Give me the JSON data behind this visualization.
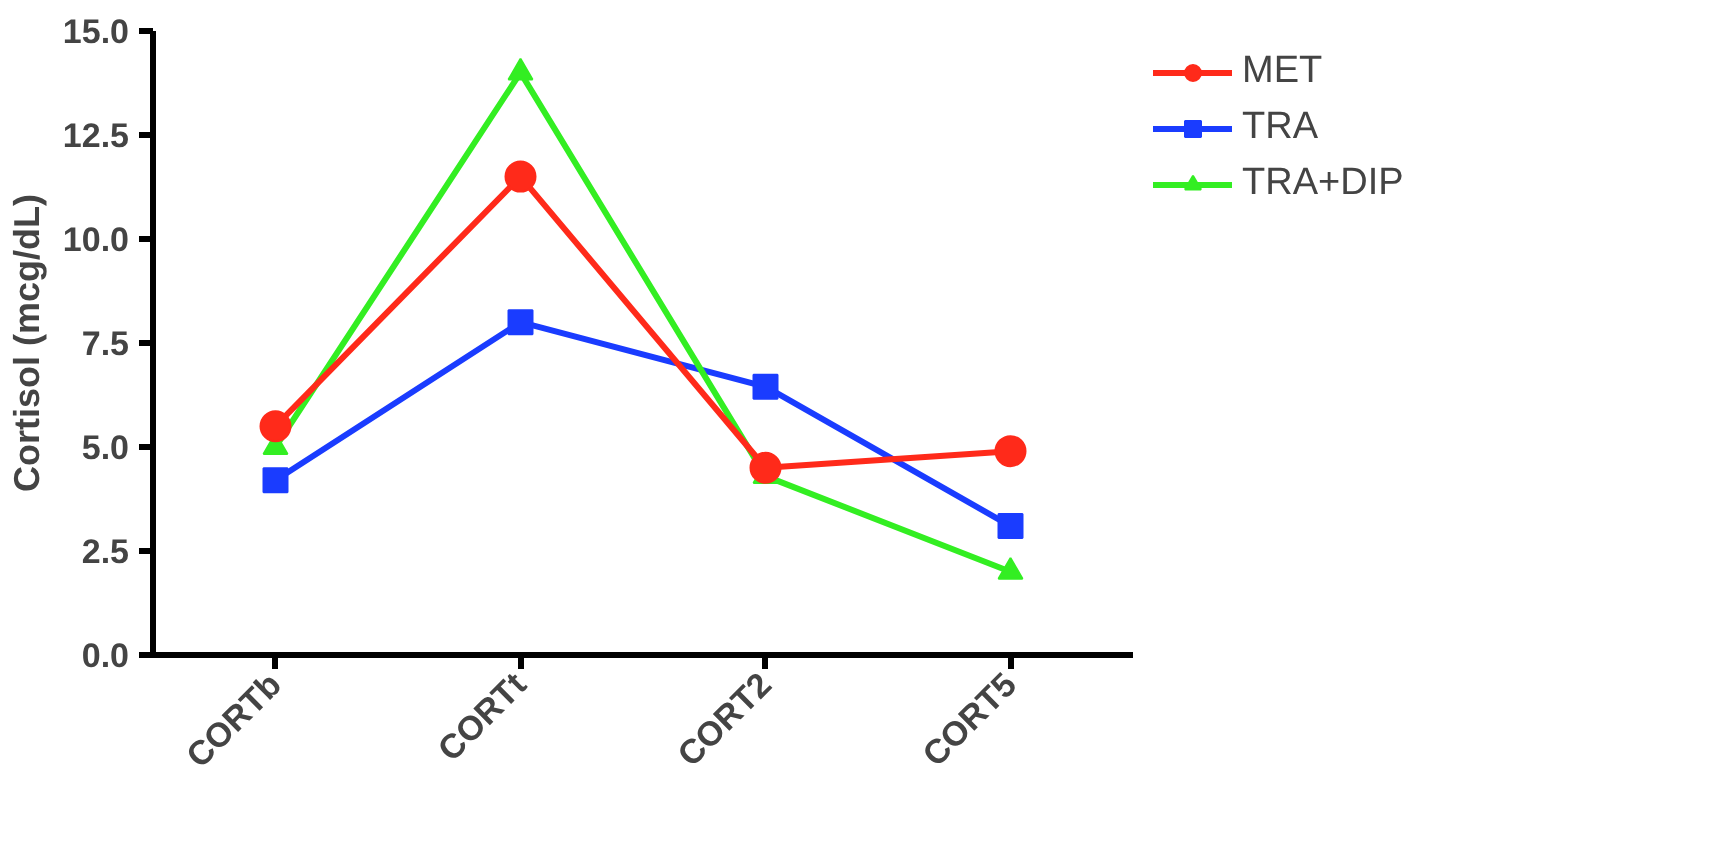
{
  "chart_data": {
    "type": "line",
    "ylabel": "Cortisol (mcg/dL)",
    "categories": [
      "CORTb",
      "CORTt",
      "CORT2",
      "CORT5"
    ],
    "ylim": [
      0,
      15
    ],
    "yticks": [
      {
        "value": 0,
        "label": "0.0"
      },
      2.5,
      {
        "value": 5,
        "label": "5.0"
      },
      7.5,
      {
        "value": 10,
        "label": "10.0"
      },
      12.5,
      {
        "value": 15,
        "label": "15.0"
      }
    ],
    "series": [
      {
        "name": "MET",
        "color": "#ff2a1a",
        "marker": "circle",
        "values": [
          5.5,
          11.5,
          4.5,
          4.9
        ]
      },
      {
        "name": "TRA",
        "color": "#1a3cff",
        "marker": "square",
        "values": [
          4.2,
          8.0,
          6.45,
          3.1
        ]
      },
      {
        "name": "TRA+DIP",
        "color": "#33ee22",
        "marker": "triangle",
        "values": [
          5.0,
          14.0,
          4.3,
          2.0
        ]
      }
    ],
    "grid": false,
    "legend": "right",
    "line_style": "solid"
  }
}
